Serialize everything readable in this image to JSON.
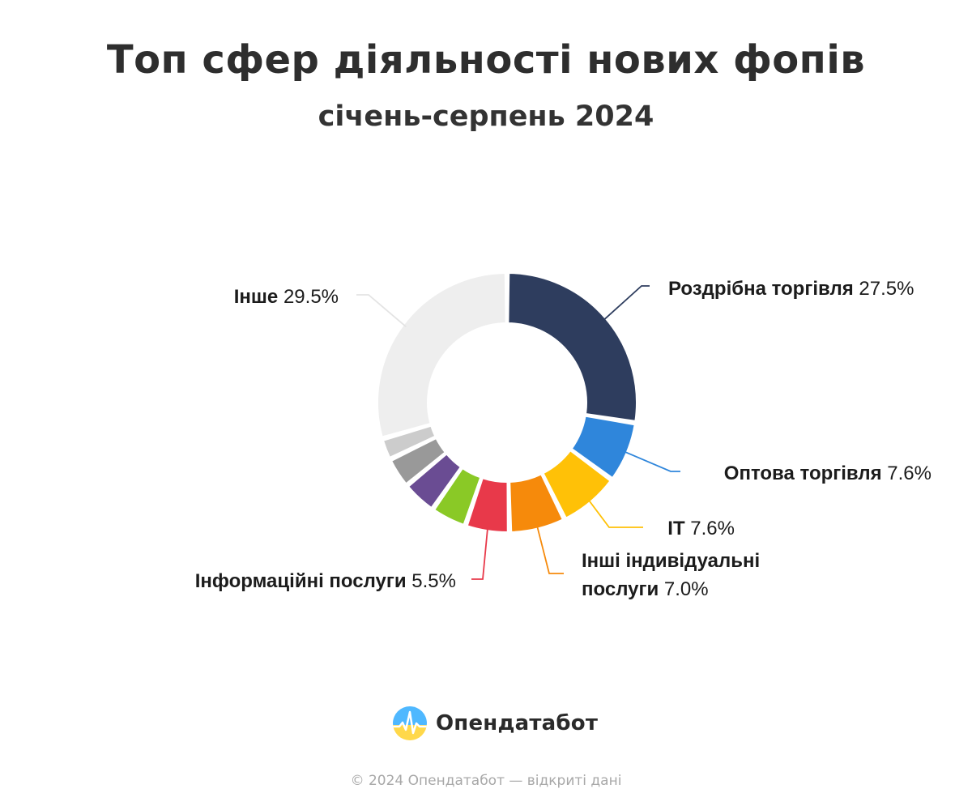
{
  "chart_data": {
    "type": "donut",
    "title": "Топ сфер діяльності нових фопів",
    "subtitle": "січень-серпень 2024",
    "slices": [
      {
        "name": "Роздрібна торгівля",
        "value": 27.5,
        "value_label": "27.5%",
        "color": "#2e3d5e"
      },
      {
        "name": "Оптова торгівля",
        "value": 7.6,
        "value_label": "7.6%",
        "color": "#2f86db"
      },
      {
        "name": "IT",
        "value": 7.6,
        "value_label": "7.6%",
        "color": "#ffc107"
      },
      {
        "name": "Інші індивідуальні послуги",
        "value": 7.0,
        "value_label": "7.0%",
        "color": "#f68a0b"
      },
      {
        "name": "Інформаційні послуги",
        "value": 5.5,
        "value_label": "5.5%",
        "color": "#e8394a"
      },
      {
        "name": "",
        "value": 4.5,
        "value_label": "",
        "color": "#8ac926"
      },
      {
        "name": "",
        "value": 4.3,
        "value_label": "",
        "color": "#6a4c93"
      },
      {
        "name": "",
        "value": 3.8,
        "value_label": "",
        "color": "#999999"
      },
      {
        "name": "",
        "value": 2.7,
        "value_label": "",
        "color": "#cccccc"
      },
      {
        "name": "Інше",
        "value": 29.5,
        "value_label": "29.5%",
        "color": "#eeeeee"
      }
    ],
    "labels": [
      {
        "name_lines": [
          "Роздрібна торгівля"
        ],
        "value": "27.5%"
      },
      {
        "name_lines": [
          "Оптова торгівля"
        ],
        "value": "7.6%"
      },
      {
        "name_lines": [
          "IT"
        ],
        "value": "7.6%"
      },
      {
        "name_lines": [
          "Інші індивідуальні",
          "послуги"
        ],
        "value": "7.0%"
      },
      {
        "name_lines": [
          "Інформаційні послуги"
        ],
        "value": "5.5%"
      },
      {
        "name_lines": [
          "Інше"
        ],
        "value": "29.5%"
      }
    ]
  },
  "branding": {
    "logo_text": "Опендатабот",
    "footer": "© 2024 Опендатабот — відкриті дані"
  },
  "colors": {
    "logo_sky": "#4fb8ff",
    "logo_sun": "#ffd84a"
  }
}
